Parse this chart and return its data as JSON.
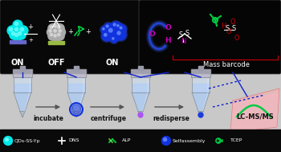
{
  "bg_color": "#c8c8c8",
  "panel_left_bg": "#080808",
  "panel_right_bg": "#050505",
  "cyan_color": "#00e8e8",
  "gray_sphere": "#aaaaaa",
  "gray_highlight": "#dddddd",
  "blue_color": "#1133dd",
  "blue_glow": "#3355ff",
  "green_color": "#00cc44",
  "red_color": "#cc0000",
  "magenta_color": "#cc00bb",
  "white": "#ffffff",
  "dark_blue_line": "#1122cc",
  "label_on": "ON",
  "label_off": "OFF",
  "label_on2": "ON",
  "label_mass": "Mass barcode",
  "legend_items": [
    "QDs-SS-Yp",
    "DNS",
    "ALP",
    "Selfassembly",
    "TCEP"
  ],
  "step_labels": [
    "incubate",
    "centrifuge",
    "redisperse",
    "LC-MS/MS"
  ],
  "tube_fill": "#aaccff",
  "tube_edge": "#888888",
  "arrow_color": "#555555",
  "pink_surface": "#ffaaaa"
}
